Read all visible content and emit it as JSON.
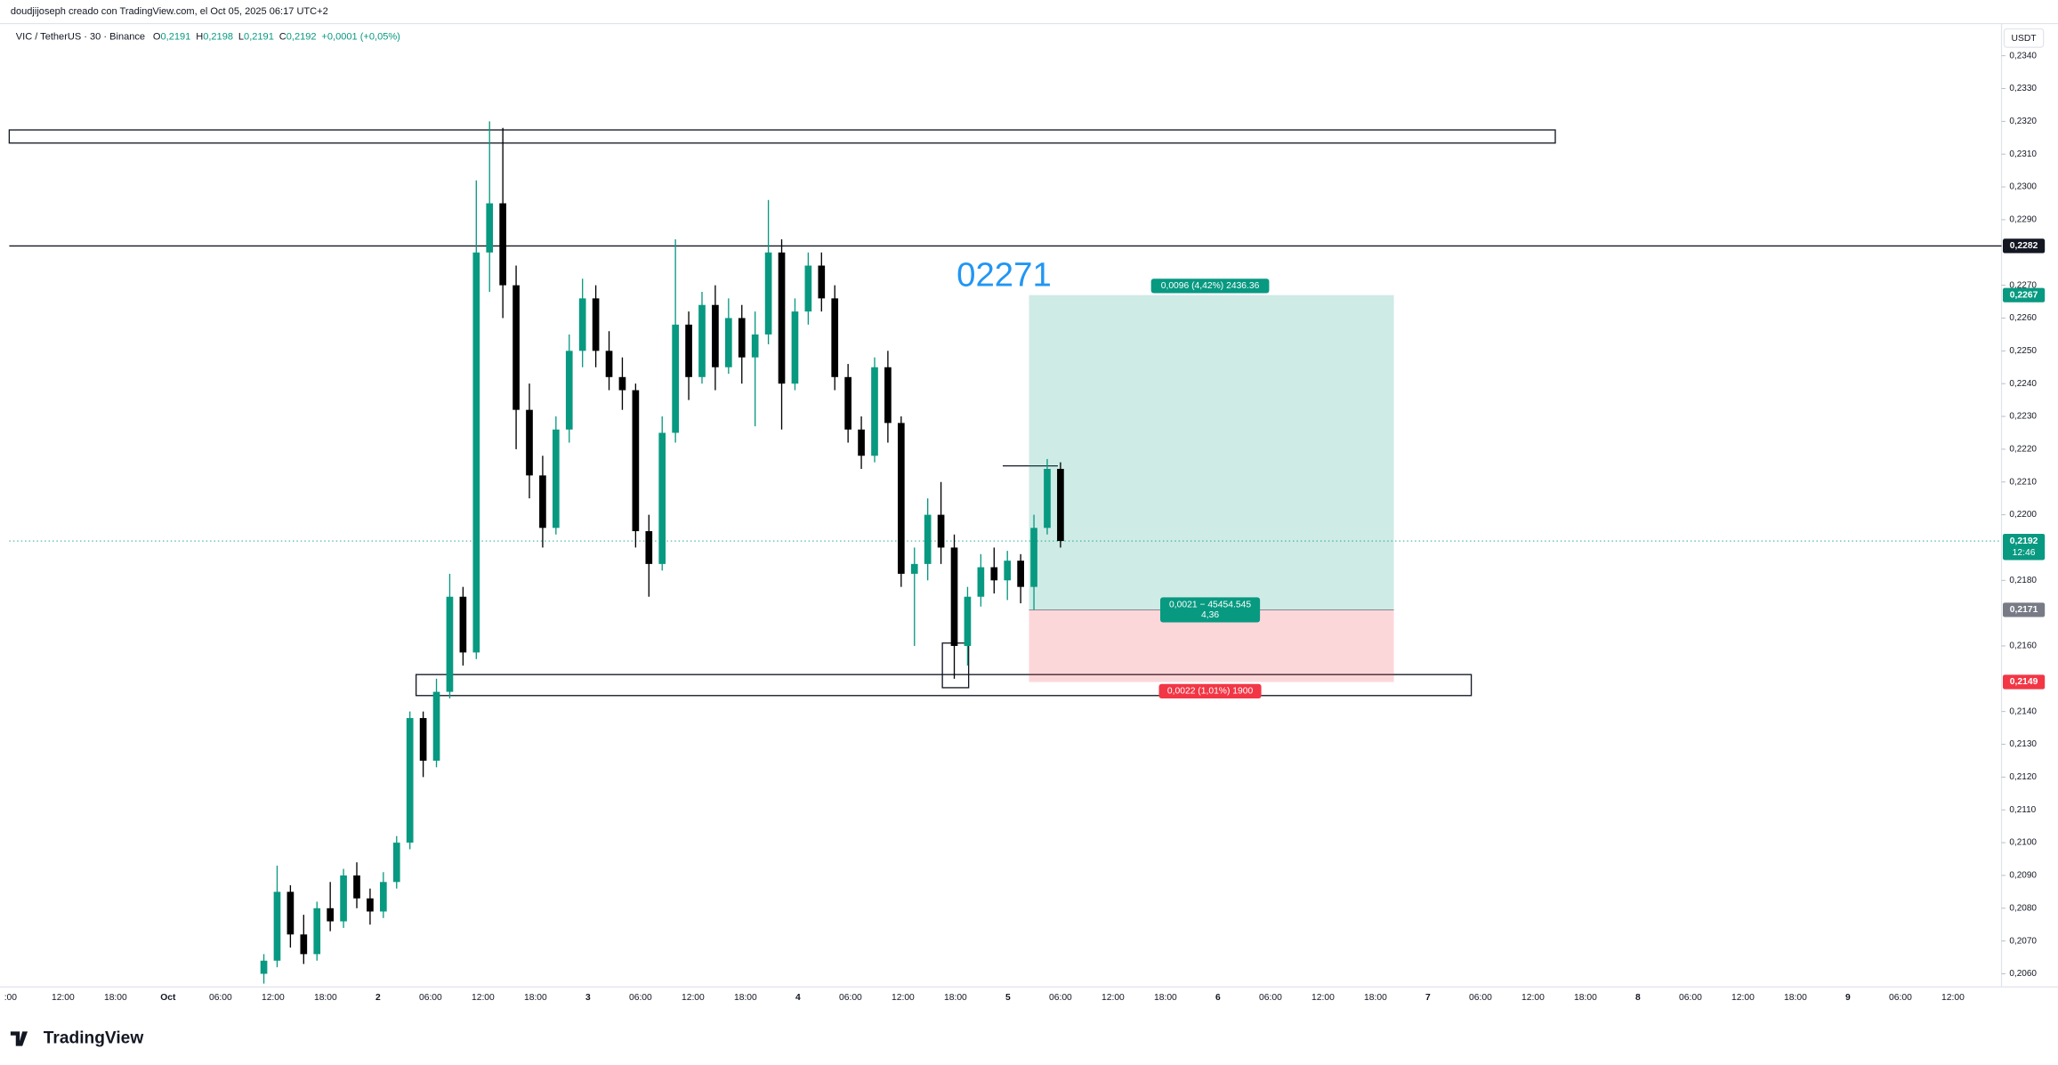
{
  "header": {
    "author_line": "doudjijoseph creado con TradingView.com, el Oct 05, 2025 06:17 UTC+2"
  },
  "chart_data": {
    "type": "candlestick",
    "symbol": "VIC / TetherUS · 30 · Binance",
    "legend_values": [
      {
        "label": "O",
        "value": "0,2191"
      },
      {
        "label": "H",
        "value": "0,2198"
      },
      {
        "label": "L",
        "value": "0,2191"
      },
      {
        "label": "C",
        "value": "0,2192"
      }
    ],
    "change": "+0,0001 (+0,05%)",
    "currency": "USDT",
    "up_color": "#089981",
    "down_color": "#000000",
    "ohlc": [
      [
        0.206,
        0.2066,
        0.2057,
        0.2064
      ],
      [
        0.2064,
        0.2093,
        0.2062,
        0.2085
      ],
      [
        0.2085,
        0.2087,
        0.2068,
        0.2072
      ],
      [
        0.2072,
        0.2078,
        0.2063,
        0.2066
      ],
      [
        0.2066,
        0.2082,
        0.2064,
        0.208
      ],
      [
        0.208,
        0.2088,
        0.2073,
        0.2076
      ],
      [
        0.2076,
        0.2092,
        0.2074,
        0.209
      ],
      [
        0.209,
        0.2094,
        0.208,
        0.2083
      ],
      [
        0.2083,
        0.2086,
        0.2075,
        0.2079
      ],
      [
        0.2079,
        0.2091,
        0.2077,
        0.2088
      ],
      [
        0.2088,
        0.2102,
        0.2086,
        0.21
      ],
      [
        0.21,
        0.214,
        0.2098,
        0.2138
      ],
      [
        0.2138,
        0.214,
        0.212,
        0.2125
      ],
      [
        0.2125,
        0.215,
        0.2123,
        0.2146
      ],
      [
        0.2146,
        0.2182,
        0.2144,
        0.2175
      ],
      [
        0.2175,
        0.2178,
        0.2154,
        0.2158
      ],
      [
        0.2158,
        0.2302,
        0.2156,
        0.228
      ],
      [
        0.228,
        0.232,
        0.2268,
        0.2295
      ],
      [
        0.2295,
        0.2318,
        0.226,
        0.227
      ],
      [
        0.227,
        0.2276,
        0.222,
        0.2232
      ],
      [
        0.2232,
        0.224,
        0.2205,
        0.2212
      ],
      [
        0.2212,
        0.2218,
        0.219,
        0.2196
      ],
      [
        0.2196,
        0.223,
        0.2194,
        0.2226
      ],
      [
        0.2226,
        0.2255,
        0.2222,
        0.225
      ],
      [
        0.225,
        0.2272,
        0.2245,
        0.2266
      ],
      [
        0.2266,
        0.227,
        0.2245,
        0.225
      ],
      [
        0.225,
        0.2256,
        0.2238,
        0.2242
      ],
      [
        0.2242,
        0.2248,
        0.2232,
        0.2238
      ],
      [
        0.2238,
        0.224,
        0.219,
        0.2195
      ],
      [
        0.2195,
        0.22,
        0.2175,
        0.2185
      ],
      [
        0.2185,
        0.223,
        0.2183,
        0.2225
      ],
      [
        0.2225,
        0.2284,
        0.2222,
        0.2258
      ],
      [
        0.2258,
        0.2262,
        0.2235,
        0.2242
      ],
      [
        0.2242,
        0.2268,
        0.224,
        0.2264
      ],
      [
        0.2264,
        0.227,
        0.2238,
        0.2245
      ],
      [
        0.2245,
        0.2266,
        0.2243,
        0.226
      ],
      [
        0.226,
        0.2264,
        0.224,
        0.2248
      ],
      [
        0.2248,
        0.2262,
        0.2227,
        0.2255
      ],
      [
        0.2255,
        0.2296,
        0.2252,
        0.228
      ],
      [
        0.228,
        0.2284,
        0.2226,
        0.224
      ],
      [
        0.224,
        0.2266,
        0.2238,
        0.2262
      ],
      [
        0.2262,
        0.228,
        0.2258,
        0.2276
      ],
      [
        0.2276,
        0.228,
        0.2262,
        0.2266
      ],
      [
        0.2266,
        0.227,
        0.2238,
        0.2242
      ],
      [
        0.2242,
        0.2246,
        0.2222,
        0.2226
      ],
      [
        0.2226,
        0.223,
        0.2214,
        0.2218
      ],
      [
        0.2218,
        0.2248,
        0.2216,
        0.2245
      ],
      [
        0.2245,
        0.225,
        0.2222,
        0.2228
      ],
      [
        0.2228,
        0.223,
        0.2178,
        0.2182
      ],
      [
        0.2182,
        0.219,
        0.216,
        0.2185
      ],
      [
        0.2185,
        0.2205,
        0.218,
        0.22
      ],
      [
        0.22,
        0.221,
        0.2185,
        0.219
      ],
      [
        0.219,
        0.2194,
        0.215,
        0.216
      ],
      [
        0.216,
        0.2178,
        0.2154,
        0.2175
      ],
      [
        0.2175,
        0.2188,
        0.2172,
        0.2184
      ],
      [
        0.2184,
        0.219,
        0.2176,
        0.218
      ],
      [
        0.218,
        0.2189,
        0.2174,
        0.2186
      ],
      [
        0.2186,
        0.2188,
        0.2173,
        0.2178
      ],
      [
        0.2178,
        0.22,
        0.2171,
        0.2196
      ],
      [
        0.2196,
        0.2217,
        0.2194,
        0.2214
      ],
      [
        0.2214,
        0.2216,
        0.219,
        0.2192
      ]
    ],
    "ylim": [
      0.2056,
      0.2349
    ],
    "yticks": [
      {
        "value": 0.234,
        "label": "0,2340"
      },
      {
        "value": 0.233,
        "label": "0,2330"
      },
      {
        "value": 0.232,
        "label": "0,2320"
      },
      {
        "value": 0.231,
        "label": "0,2310"
      },
      {
        "value": 0.23,
        "label": "0,2300"
      },
      {
        "value": 0.229,
        "label": "0,2290"
      },
      {
        "value": 0.227,
        "label": "0,2270"
      },
      {
        "value": 0.226,
        "label": "0,2260"
      },
      {
        "value": 0.225,
        "label": "0,2250"
      },
      {
        "value": 0.224,
        "label": "0,2240"
      },
      {
        "value": 0.223,
        "label": "0,2230"
      },
      {
        "value": 0.222,
        "label": "0,2220"
      },
      {
        "value": 0.221,
        "label": "0,2210"
      },
      {
        "value": 0.22,
        "label": "0,2200"
      },
      {
        "value": 0.218,
        "label": "0,2180"
      },
      {
        "value": 0.216,
        "label": "0,2160"
      },
      {
        "value": 0.214,
        "label": "0,2140"
      },
      {
        "value": 0.213,
        "label": "0,2130"
      },
      {
        "value": 0.212,
        "label": "0,2120"
      },
      {
        "value": 0.211,
        "label": "0,2110"
      },
      {
        "value": 0.21,
        "label": "0,2100"
      },
      {
        "value": 0.209,
        "label": "0,2090"
      },
      {
        "value": 0.208,
        "label": "0,2080"
      },
      {
        "value": 0.207,
        "label": "0,2070"
      },
      {
        "value": 0.206,
        "label": "0,2060"
      }
    ],
    "x_labels": [
      ":00",
      "12:00",
      "18:00",
      "Oct",
      "06:00",
      "12:00",
      "18:00",
      "2",
      "06:00",
      "12:00",
      "18:00",
      "3",
      "06:00",
      "12:00",
      "18:00",
      "4",
      "06:00",
      "12:00",
      "18:00",
      "5",
      "06:00",
      "12:00",
      "18:00",
      "6",
      "06:00",
      "12:00",
      "18:00",
      "7",
      "06:00",
      "12:00",
      "18:00",
      "8",
      "06:00",
      "12:00",
      "18:00",
      "9",
      "06:00",
      "12:00"
    ],
    "annotation": "02271",
    "price_badges": [
      {
        "value": 0.2282,
        "label": "0,2282",
        "color": "#131722"
      },
      {
        "value": 0.2267,
        "label": "0,2267",
        "color": "#089981"
      },
      {
        "value": 0.2192,
        "label": "0,2192",
        "time": "12:46",
        "color": "#089981"
      },
      {
        "value": 0.2171,
        "label": "0,2171",
        "color": "#787b86"
      },
      {
        "value": 0.2149,
        "label": "0,2149",
        "color": "#f23645"
      }
    ],
    "position": {
      "target_label": "0,0096 (4,42%) 2436.36",
      "entry_label": [
        "0,0021 − 45454.545",
        "4,36"
      ],
      "stop_label": "0,0022 (1,01%) 1900"
    }
  },
  "footer": {
    "brand": "TradingView"
  }
}
